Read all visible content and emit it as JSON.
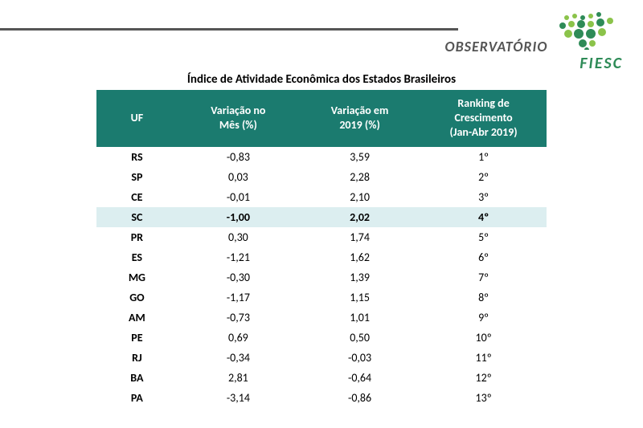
{
  "header": {
    "logo_brand": "OBSERVATÓRIO",
    "logo_sub": "FIESC",
    "line_color": "#555555",
    "logo_green": "#2e8b57",
    "logo_light_green": "#8bc34a"
  },
  "table": {
    "title": "Índice de Atividade Econômica dos Estados Brasileiros",
    "header_bg": "#1b7b6f",
    "highlight_bg": "#dceef0",
    "columns": [
      {
        "label": "UF",
        "width": "18%"
      },
      {
        "label": "Variação no Mês (%)",
        "width": "27%"
      },
      {
        "label": "Variação em 2019 (%)",
        "width": "27%"
      },
      {
        "label": "Ranking de Crescimento (Jan-Abr 2019)",
        "width": "28%"
      }
    ],
    "highlight_row_index": 3,
    "rows": [
      {
        "uf": "RS",
        "var_mes": "-0,83",
        "var_2019": "3,59",
        "rank": "1º"
      },
      {
        "uf": "SP",
        "var_mes": "0,03",
        "var_2019": "2,28",
        "rank": "2º"
      },
      {
        "uf": "CE",
        "var_mes": "-0,01",
        "var_2019": "2,10",
        "rank": "3º"
      },
      {
        "uf": "SC",
        "var_mes": "-1,00",
        "var_2019": "2,02",
        "rank": "4º"
      },
      {
        "uf": "PR",
        "var_mes": "0,30",
        "var_2019": "1,74",
        "rank": "5º"
      },
      {
        "uf": "ES",
        "var_mes": "-1,21",
        "var_2019": "1,62",
        "rank": "6º"
      },
      {
        "uf": "MG",
        "var_mes": "-0,30",
        "var_2019": "1,39",
        "rank": "7º"
      },
      {
        "uf": "GO",
        "var_mes": "-1,17",
        "var_2019": "1,15",
        "rank": "8º"
      },
      {
        "uf": "AM",
        "var_mes": "-0,73",
        "var_2019": "1,01",
        "rank": "9º"
      },
      {
        "uf": "PE",
        "var_mes": "0,69",
        "var_2019": "0,50",
        "rank": "10º"
      },
      {
        "uf": "RJ",
        "var_mes": "-0,34",
        "var_2019": "-0,03",
        "rank": "11º"
      },
      {
        "uf": "BA",
        "var_mes": "2,81",
        "var_2019": "-0,64",
        "rank": "12º"
      },
      {
        "uf": "PA",
        "var_mes": "-3,14",
        "var_2019": "-0,86",
        "rank": "13º"
      }
    ]
  }
}
